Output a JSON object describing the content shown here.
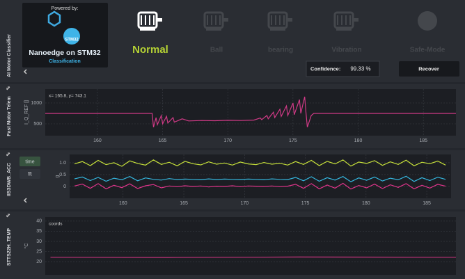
{
  "sidebar": {
    "title": "AI Motor Classifier"
  },
  "logo": {
    "powered_by": "Powered by:",
    "badge": "STM32",
    "title": "Nanoedge on STM32",
    "subtitle": "Classification"
  },
  "status": {
    "classes": [
      {
        "label": "Normal",
        "active": true
      },
      {
        "label": "Ball",
        "active": false
      },
      {
        "label": "bearing",
        "active": false
      },
      {
        "label": "Vibration",
        "active": false
      },
      {
        "label": "Safe-Mode",
        "active": false
      }
    ]
  },
  "confidence": {
    "label": "Confidence:",
    "value": "99.33 %"
  },
  "recover": {
    "label": "Recover"
  },
  "chart_data": [
    {
      "type": "line",
      "side_label": "Fast Motor Telem",
      "y_label": "I_Q_REF []",
      "coords_label": "x= 165.8, y= 743.1",
      "x": [
        156,
        164.2,
        164.3,
        164.5,
        164.6,
        164.9,
        165.0,
        165.3,
        165.4,
        165.8,
        165.9,
        166.5,
        167,
        168,
        169,
        170,
        171,
        172,
        172.5,
        172.6,
        173,
        173.1,
        173.5,
        173.6,
        174,
        174.1,
        174.5,
        174.6,
        175,
        175.1,
        175.5,
        175.6,
        175.9,
        176.0,
        176.1,
        176.4,
        176.6,
        187.5
      ],
      "series": [
        {
          "color": "#d03a86",
          "values": [
            750,
            750,
            420,
            650,
            480,
            700,
            500,
            680,
            520,
            650,
            540,
            620,
            570,
            580,
            575,
            585,
            580,
            590,
            640,
            600,
            700,
            620,
            780,
            650,
            850,
            680,
            930,
            700,
            1000,
            720,
            1080,
            750,
            1150,
            760,
            420,
            700,
            750,
            750
          ]
        }
      ],
      "xlim": [
        156,
        187.5
      ],
      "xticks": [
        160,
        165,
        170,
        175,
        180,
        185
      ],
      "ylim": [
        217,
        1333
      ],
      "yticks": [
        500,
        1000
      ],
      "grid": true
    },
    {
      "type": "line",
      "side_label": "IIS3DWB_ACC",
      "y_label": "g",
      "view_buttons": [
        "time",
        "fft"
      ],
      "x": [
        156,
        156.65,
        157.3,
        157.95,
        158.6,
        159.25,
        159.9,
        160.55,
        161.2,
        161.85,
        162.5,
        163.15,
        163.8,
        164.45,
        165.1,
        165.75,
        166.4,
        167.05,
        167.7,
        168.35,
        169,
        169.65,
        170.3,
        170.95,
        171.6,
        172.25,
        172.9,
        173.55,
        174.2,
        174.85,
        175.5,
        176.15,
        176.8,
        177.45,
        178.1,
        178.75,
        179.4,
        180.05,
        180.7,
        181.35,
        182,
        182.65,
        183.3,
        183.95,
        184.6,
        185.25,
        185.9,
        186.55
      ],
      "series": [
        {
          "color": "#c6e03a",
          "values": [
            0.95,
            1.05,
            0.88,
            1.1,
            0.92,
            1.0,
            0.85,
            1.08,
            0.97,
            0.9,
            1.12,
            0.93,
            1.02,
            0.87,
            1.06,
            0.96,
            0.91,
            1.04,
            0.94,
            0.99,
            0.9,
            1.03,
            0.95,
            0.92,
            1.01,
            0.94,
            0.98,
            0.9,
            1.05,
            0.93,
            1.1,
            0.88,
            1.06,
            0.95,
            1.12,
            0.86,
            1.03,
            0.97,
            1.09,
            0.89,
            1.04,
            0.93,
            1.11,
            0.87,
            1.02,
            0.96,
            1.07,
            0.9
          ]
        },
        {
          "color": "#35b8e0",
          "values": [
            0.32,
            0.4,
            0.25,
            0.38,
            0.22,
            0.35,
            0.28,
            0.42,
            0.24,
            0.36,
            0.3,
            0.27,
            0.33,
            0.29,
            0.31,
            0.3,
            0.28,
            0.32,
            0.29,
            0.31,
            0.3,
            0.29,
            0.31,
            0.3,
            0.28,
            0.32,
            0.3,
            0.29,
            0.38,
            0.24,
            0.41,
            0.22,
            0.37,
            0.27,
            0.42,
            0.2,
            0.36,
            0.26,
            0.4,
            0.23,
            0.35,
            0.28,
            0.43,
            0.21,
            0.37,
            0.25,
            0.39,
            0.3
          ]
        },
        {
          "color": "#e0348a",
          "values": [
            0.02,
            0.1,
            -0.08,
            0.12,
            -0.1,
            0.05,
            -0.05,
            0.11,
            -0.09,
            0.03,
            0.08,
            -0.06,
            0.02,
            -0.01,
            0.03,
            0.0,
            0.02,
            -0.02,
            0.01,
            0.0,
            0.03,
            -0.01,
            0.02,
            0.01,
            0.0,
            0.02,
            -0.01,
            0.01,
            0.09,
            -0.08,
            0.12,
            -0.1,
            0.06,
            -0.07,
            0.13,
            -0.11,
            0.04,
            -0.06,
            0.1,
            -0.09,
            0.07,
            -0.04,
            0.12,
            -0.1,
            0.05,
            -0.07,
            0.09,
            0.01
          ]
        }
      ],
      "xlim": [
        155.6,
        187
      ],
      "xticks": [
        160,
        165,
        170,
        175,
        180,
        185
      ],
      "ylim": [
        -0.5,
        1.35
      ],
      "yticks": [
        0,
        0.5,
        {
          "value": 1,
          "label": "1.0"
        }
      ],
      "grid": true
    },
    {
      "type": "line",
      "side_label": "STTS22H_TEMP",
      "y_label": "°C",
      "coords_label": "coords",
      "x": [
        156,
        165,
        175,
        187
      ],
      "series": [
        {
          "color": "#c8347e",
          "values": [
            22.2,
            22.1,
            22.3,
            22.2
          ]
        }
      ],
      "xlim": [
        155.6,
        187
      ],
      "ylim": [
        13.5,
        42
      ],
      "yticks": [
        20,
        25,
        30,
        35,
        40
      ],
      "grid": true
    }
  ]
}
